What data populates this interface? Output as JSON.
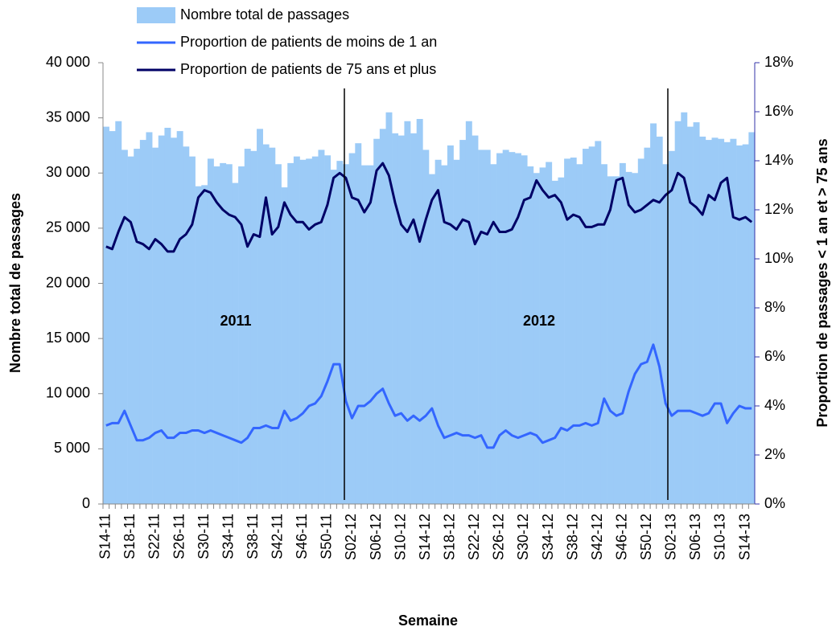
{
  "chart_data": {
    "type": "bar-line",
    "x_label": "Semaine",
    "y_label": "Nombre total de passages",
    "y2_label": "Proportion de passages < 1 an et > 75 ans",
    "annotations": [
      "2011",
      "2012"
    ],
    "categories": [
      "S14-11",
      null,
      null,
      null,
      "S18-11",
      null,
      null,
      null,
      "S22-11",
      null,
      null,
      null,
      "S26-11",
      null,
      null,
      null,
      "S30-11",
      null,
      null,
      null,
      "S34-11",
      null,
      null,
      null,
      "S38-11",
      null,
      null,
      null,
      "S42-11",
      null,
      null,
      null,
      "S46-11",
      null,
      null,
      null,
      "S50-11",
      null,
      null,
      null,
      "S02-12",
      null,
      null,
      null,
      "S06-12",
      null,
      null,
      null,
      "S10-12",
      null,
      null,
      null,
      "S14-12",
      null,
      null,
      null,
      "S18-12",
      null,
      null,
      null,
      "S22-12",
      null,
      null,
      null,
      "S26-12",
      null,
      null,
      null,
      "S30-12",
      null,
      null,
      null,
      "S34-12",
      null,
      null,
      null,
      "S38-12",
      null,
      null,
      null,
      "S42-12",
      null,
      null,
      null,
      "S46-12",
      null,
      null,
      null,
      "S50-12",
      null,
      null,
      null,
      "S02-13",
      null,
      null,
      null,
      "S06-13",
      null,
      null,
      null,
      "S10-13",
      null,
      null,
      null,
      "S14-13",
      null
    ],
    "series": [
      {
        "name": "Nombre total de passages",
        "type": "bar",
        "color": "#9ccbf7",
        "values": [
          34200,
          33800,
          34700,
          32100,
          31500,
          32200,
          33000,
          33700,
          32300,
          33400,
          34100,
          33200,
          33800,
          32400,
          31500,
          28800,
          28900,
          31300,
          30600,
          30900,
          30800,
          29100,
          30600,
          32200,
          32000,
          34000,
          32600,
          32300,
          30800,
          28700,
          30900,
          31500,
          31200,
          31300,
          31500,
          32100,
          31600,
          30300,
          31100,
          30800,
          31800,
          32700,
          30700,
          30700,
          33100,
          34000,
          35500,
          33600,
          33400,
          34700,
          33600,
          34900,
          32100,
          29900,
          31200,
          30700,
          32500,
          31200,
          33000,
          34700,
          33400,
          32100,
          32100,
          30800,
          31800,
          32100,
          31900,
          31800,
          31600,
          30600,
          30000,
          30500,
          31000,
          29300,
          29600,
          31300,
          31400,
          30800,
          32200,
          32400,
          32900,
          30800,
          29700,
          29700,
          30900,
          30100,
          30000,
          31300,
          32300,
          34500,
          33300,
          30800,
          32000,
          34700,
          35500,
          34200,
          34600,
          33300,
          33000,
          33200,
          33100,
          32800,
          33100,
          32500,
          32600,
          33700
        ]
      },
      {
        "name": "Proportion de patients de moins de 1 an",
        "type": "line",
        "axis": "y2",
        "color": "#3366ff",
        "values": [
          3.2,
          3.3,
          3.3,
          3.8,
          3.2,
          2.6,
          2.6,
          2.7,
          2.9,
          3.0,
          2.7,
          2.7,
          2.9,
          2.9,
          3.0,
          3.0,
          2.9,
          3.0,
          2.9,
          2.8,
          2.7,
          2.6,
          2.5,
          2.7,
          3.1,
          3.1,
          3.2,
          3.1,
          3.1,
          3.8,
          3.4,
          3.5,
          3.7,
          4.0,
          4.1,
          4.4,
          5.0,
          5.7,
          5.7,
          4.2,
          3.5,
          4.0,
          4.0,
          4.2,
          4.5,
          4.7,
          4.1,
          3.6,
          3.7,
          3.4,
          3.6,
          3.4,
          3.6,
          3.9,
          3.2,
          2.7,
          2.8,
          2.9,
          2.8,
          2.8,
          2.7,
          2.8,
          2.3,
          2.3,
          2.8,
          3.0,
          2.8,
          2.7,
          2.8,
          2.9,
          2.8,
          2.5,
          2.6,
          2.7,
          3.1,
          3.0,
          3.2,
          3.2,
          3.3,
          3.2,
          3.3,
          4.3,
          3.8,
          3.6,
          3.7,
          4.6,
          5.3,
          5.7,
          5.8,
          6.5,
          5.6,
          4.1,
          3.6,
          3.8,
          3.8,
          3.8,
          3.7,
          3.6,
          3.7,
          4.1,
          4.1,
          3.3,
          3.7,
          4.0,
          3.9,
          3.9
        ]
      },
      {
        "name": "Proportion de patients de 75 ans et plus",
        "type": "line",
        "axis": "y2",
        "color": "#000066",
        "values": [
          10.5,
          10.4,
          11.1,
          11.7,
          11.5,
          10.7,
          10.6,
          10.4,
          10.8,
          10.6,
          10.3,
          10.3,
          10.8,
          11.0,
          11.4,
          12.5,
          12.8,
          12.7,
          12.3,
          12.0,
          11.8,
          11.7,
          11.4,
          10.5,
          11.0,
          10.9,
          12.5,
          11.0,
          11.3,
          12.3,
          11.8,
          11.5,
          11.5,
          11.2,
          11.4,
          11.5,
          12.2,
          13.3,
          13.5,
          13.3,
          12.5,
          12.4,
          11.9,
          12.3,
          13.6,
          13.9,
          13.4,
          12.3,
          11.4,
          11.1,
          11.6,
          10.7,
          11.6,
          12.4,
          12.8,
          11.5,
          11.4,
          11.2,
          11.6,
          11.5,
          10.6,
          11.1,
          11.0,
          11.5,
          11.1,
          11.1,
          11.2,
          11.7,
          12.4,
          12.5,
          13.2,
          12.8,
          12.5,
          12.6,
          12.3,
          11.6,
          11.8,
          11.7,
          11.3,
          11.3,
          11.4,
          11.4,
          12.0,
          13.2,
          13.3,
          12.2,
          11.9,
          12.0,
          12.2,
          12.4,
          12.3,
          12.6,
          12.8,
          13.5,
          13.3,
          12.3,
          12.1,
          11.8,
          12.6,
          12.4,
          13.1,
          13.3,
          11.7,
          11.6,
          11.7,
          11.5
        ]
      }
    ],
    "ylim": [
      0,
      40000
    ],
    "yticks": [
      0,
      {
        "value": 5000,
        "label": "5 000"
      },
      {
        "value": 10000,
        "label": "10 000"
      },
      {
        "value": 15000,
        "label": "15 000"
      },
      {
        "value": 20000,
        "label": "20 000"
      },
      {
        "value": 25000,
        "label": "25 000"
      },
      {
        "value": 30000,
        "label": "30 000"
      },
      {
        "value": 35000,
        "label": "35 000"
      },
      {
        "value": 40000,
        "label": "40 000"
      }
    ],
    "y2lim": [
      0,
      18
    ],
    "y2ticks": [
      {
        "value": 0,
        "label": "0%"
      },
      {
        "value": 2,
        "label": "2%"
      },
      {
        "value": 4,
        "label": "4%"
      },
      {
        "value": 6,
        "label": "6%"
      },
      {
        "value": 8,
        "label": "8%"
      },
      {
        "value": 10,
        "label": "10%"
      },
      {
        "value": 12,
        "label": "12%"
      },
      {
        "value": 14,
        "label": "14%"
      },
      {
        "value": 16,
        "label": "16%"
      },
      {
        "value": 18,
        "label": "18%"
      }
    ],
    "legend": "top"
  }
}
